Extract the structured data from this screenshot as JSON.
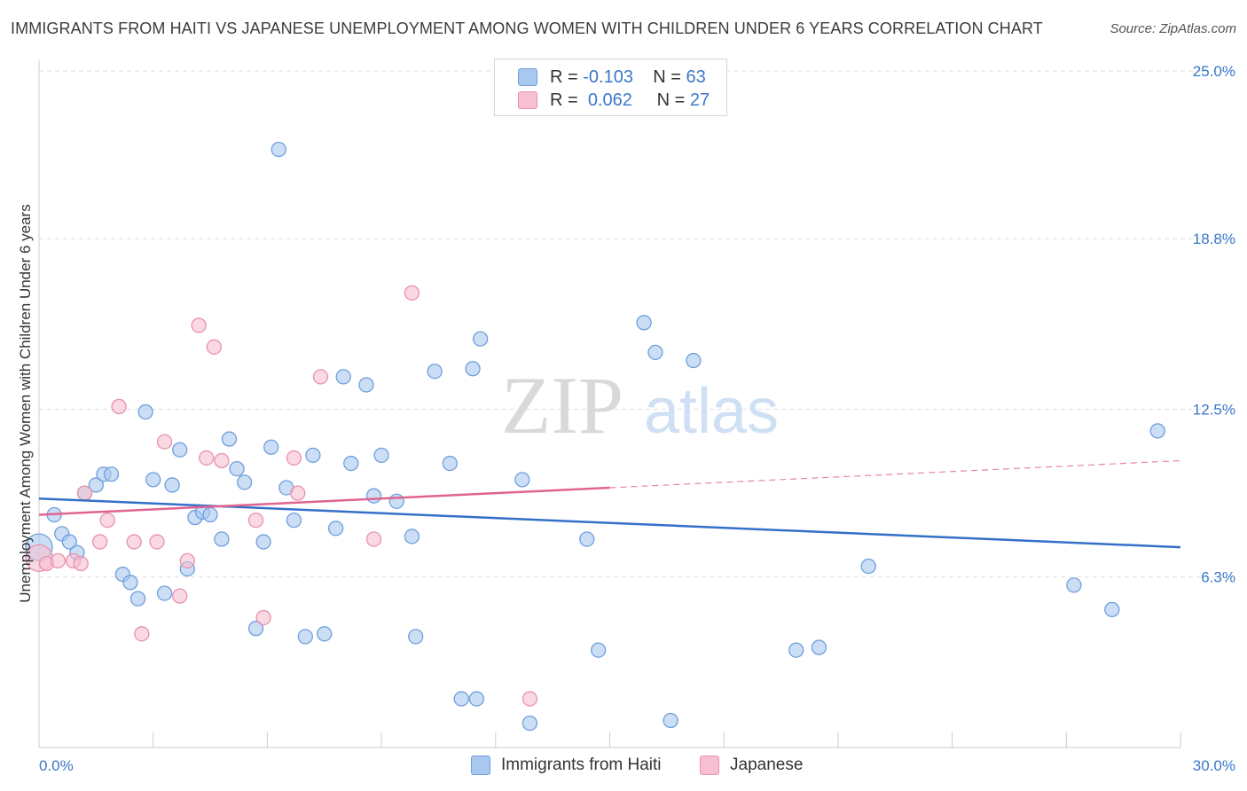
{
  "header": {
    "title": "IMMIGRANTS FROM HAITI VS JAPANESE UNEMPLOYMENT AMONG WOMEN WITH CHILDREN UNDER 6 YEARS CORRELATION CHART",
    "source": "Source: ZipAtlas.com"
  },
  "watermark": {
    "zip": "ZIP",
    "atlas": "atlas"
  },
  "legend": {
    "rows": [
      {
        "r_label": "R =",
        "r_value": "-0.103",
        "n_label": "N =",
        "n_value": "63"
      },
      {
        "r_label": "R =",
        "r_value": "0.062",
        "n_label": "N =",
        "n_value": "27"
      }
    ]
  },
  "bottom_legend": [
    "Immigrants from Haiti",
    "Japanese"
  ],
  "colors": {
    "haiti_fill": "#a9c8f0",
    "haiti_stroke": "#6f9fdc",
    "haiti_line": "#3370c8",
    "japanese_fill": "#f7bfd0",
    "japanese_stroke": "#e891ad",
    "japanese_line": "#e06490",
    "tick_label": "#3b78c9",
    "grid": "#dddddd"
  },
  "chart_data": {
    "type": "scatter",
    "title": "IMMIGRANTS FROM HAITI VS JAPANESE UNEMPLOYMENT AMONG WOMEN WITH CHILDREN UNDER 6 YEARS CORRELATION CHART",
    "xlabel": "",
    "ylabel": "Unemployment Among Women with Children Under 6 years",
    "xlim": [
      0,
      30
    ],
    "ylim": [
      0,
      25
    ],
    "x_tick_labels": [
      "0.0%",
      "30.0%"
    ],
    "y_ticks": [
      6.3,
      12.5,
      18.8,
      25.0
    ],
    "y_tick_labels": [
      "6.3%",
      "12.5%",
      "18.8%",
      "25.0%"
    ],
    "grid": true,
    "legend_position": "top-center",
    "series": [
      {
        "name": "Immigrants from Haiti",
        "points": [
          [
            0.0,
            7.4
          ],
          [
            0.4,
            8.6
          ],
          [
            0.6,
            7.9
          ],
          [
            0.8,
            7.6
          ],
          [
            1.0,
            7.2
          ],
          [
            1.2,
            9.4
          ],
          [
            1.5,
            9.7
          ],
          [
            1.7,
            10.1
          ],
          [
            1.9,
            10.1
          ],
          [
            2.2,
            6.4
          ],
          [
            2.4,
            6.1
          ],
          [
            2.6,
            5.5
          ],
          [
            2.8,
            12.4
          ],
          [
            3.0,
            9.9
          ],
          [
            3.3,
            5.7
          ],
          [
            3.5,
            9.7
          ],
          [
            3.7,
            11.0
          ],
          [
            3.9,
            6.6
          ],
          [
            4.1,
            8.5
          ],
          [
            4.3,
            8.7
          ],
          [
            4.5,
            8.6
          ],
          [
            4.8,
            7.7
          ],
          [
            5.0,
            11.4
          ],
          [
            5.2,
            10.3
          ],
          [
            5.4,
            9.8
          ],
          [
            5.7,
            4.4
          ],
          [
            5.9,
            7.6
          ],
          [
            6.1,
            11.1
          ],
          [
            6.3,
            22.1
          ],
          [
            6.5,
            9.6
          ],
          [
            6.7,
            8.4
          ],
          [
            7.0,
            4.1
          ],
          [
            7.2,
            10.8
          ],
          [
            7.5,
            4.2
          ],
          [
            7.8,
            8.1
          ],
          [
            8.0,
            13.7
          ],
          [
            8.2,
            10.5
          ],
          [
            8.6,
            13.4
          ],
          [
            8.8,
            9.3
          ],
          [
            9.0,
            10.8
          ],
          [
            9.4,
            9.1
          ],
          [
            9.8,
            7.8
          ],
          [
            9.9,
            4.1
          ],
          [
            10.4,
            13.9
          ],
          [
            10.8,
            10.5
          ],
          [
            11.1,
            1.8
          ],
          [
            11.5,
            1.8
          ],
          [
            11.4,
            14.0
          ],
          [
            11.6,
            15.1
          ],
          [
            12.7,
            9.9
          ],
          [
            12.9,
            0.9
          ],
          [
            14.4,
            7.7
          ],
          [
            14.7,
            3.6
          ],
          [
            15.9,
            15.7
          ],
          [
            16.2,
            14.6
          ],
          [
            16.6,
            1.0
          ],
          [
            17.2,
            14.3
          ],
          [
            19.9,
            3.6
          ],
          [
            20.5,
            3.7
          ],
          [
            21.8,
            6.7
          ],
          [
            27.2,
            6.0
          ],
          [
            28.2,
            5.1
          ],
          [
            29.4,
            11.7
          ]
        ],
        "trend": {
          "x": [
            0,
            30
          ],
          "y": [
            9.2,
            7.4
          ]
        }
      },
      {
        "name": "Japanese",
        "points": [
          [
            0.0,
            7.0
          ],
          [
            0.2,
            6.8
          ],
          [
            0.5,
            6.9
          ],
          [
            0.9,
            6.9
          ],
          [
            1.1,
            6.8
          ],
          [
            1.2,
            9.4
          ],
          [
            1.6,
            7.6
          ],
          [
            1.8,
            8.4
          ],
          [
            2.1,
            12.6
          ],
          [
            2.5,
            7.6
          ],
          [
            2.7,
            4.2
          ],
          [
            3.1,
            7.6
          ],
          [
            3.3,
            11.3
          ],
          [
            3.7,
            5.6
          ],
          [
            3.9,
            6.9
          ],
          [
            4.2,
            15.6
          ],
          [
            4.4,
            10.7
          ],
          [
            4.6,
            14.8
          ],
          [
            4.8,
            10.6
          ],
          [
            5.7,
            8.4
          ],
          [
            5.9,
            4.8
          ],
          [
            6.7,
            10.7
          ],
          [
            6.8,
            9.4
          ],
          [
            7.4,
            13.7
          ],
          [
            8.8,
            7.7
          ],
          [
            9.8,
            16.8
          ],
          [
            12.9,
            1.8
          ]
        ],
        "trend": {
          "x": [
            0,
            15
          ],
          "y": [
            8.6,
            9.6
          ]
        },
        "trend_dashed": {
          "x": [
            15,
            30
          ],
          "y": [
            9.6,
            10.6
          ]
        }
      }
    ]
  }
}
